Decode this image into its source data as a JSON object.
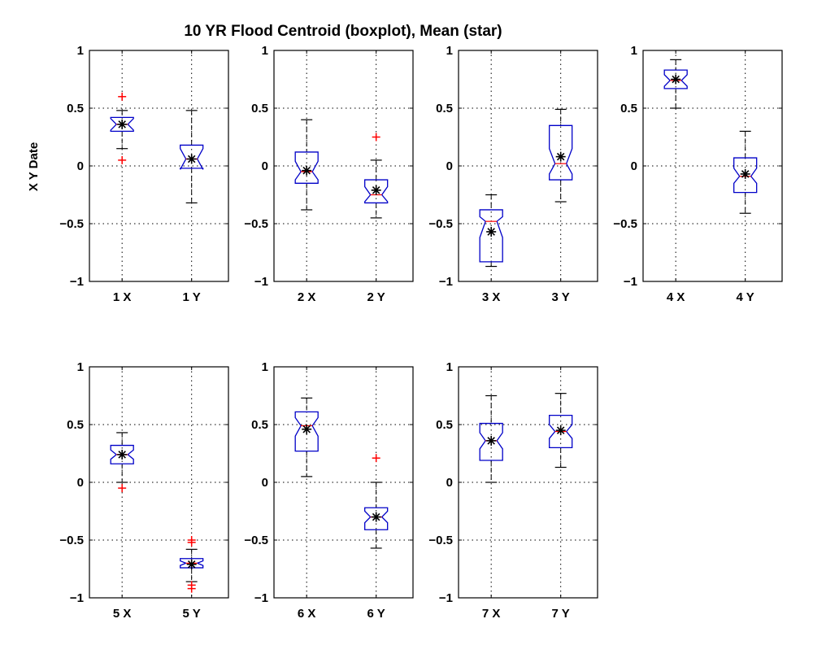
{
  "chart_data": {
    "type": "boxplot",
    "title": "10 YR Flood Centroid (boxplot), Mean (star)",
    "ylabel": "X Y Date",
    "ylim": [
      -1,
      1
    ],
    "yticks": [
      1,
      0.5,
      0,
      -0.5,
      -1
    ],
    "ytick_labels": [
      "1",
      "0.5",
      "0",
      "−0.5",
      "−1"
    ],
    "grid": true,
    "colors": {
      "box": "#0000c8",
      "median": "#ff0000",
      "outlier": "#ff0000",
      "whisker": "#000000",
      "mean": "#000000"
    },
    "panels": [
      {
        "boxes": [
          {
            "label": "1 X",
            "min": 0.15,
            "q1": 0.3,
            "median": 0.36,
            "q3": 0.42,
            "max": 0.48,
            "notch_low": 0.31,
            "notch_high": 0.41,
            "mean": 0.36,
            "outliers": [
              0.6,
              0.05
            ]
          },
          {
            "label": "1 Y",
            "min": -0.32,
            "q1": -0.02,
            "median": 0.06,
            "q3": 0.18,
            "max": 0.48,
            "notch_low": -0.03,
            "notch_high": 0.15,
            "mean": 0.06,
            "outliers": []
          }
        ]
      },
      {
        "boxes": [
          {
            "label": "2 X",
            "min": -0.38,
            "q1": -0.15,
            "median": -0.05,
            "q3": 0.12,
            "max": 0.4,
            "notch_low": -0.12,
            "notch_high": 0.04,
            "mean": -0.04,
            "outliers": []
          },
          {
            "label": "2 Y",
            "min": -0.45,
            "q1": -0.32,
            "median": -0.25,
            "q3": -0.12,
            "max": 0.05,
            "notch_low": -0.31,
            "notch_high": -0.18,
            "mean": -0.21,
            "outliers": [
              0.25
            ]
          }
        ]
      },
      {
        "boxes": [
          {
            "label": "3 X",
            "min": -0.87,
            "q1": -0.83,
            "median": -0.48,
            "q3": -0.38,
            "max": -0.25,
            "notch_low": -0.62,
            "notch_high": -0.44,
            "mean": -0.57,
            "outliers": []
          },
          {
            "label": "3 Y",
            "min": -0.31,
            "q1": -0.12,
            "median": 0.02,
            "q3": 0.35,
            "max": 0.49,
            "notch_low": -0.07,
            "notch_high": 0.15,
            "mean": 0.08,
            "outliers": []
          }
        ]
      },
      {
        "boxes": [
          {
            "label": "4 X",
            "min": 0.5,
            "q1": 0.67,
            "median": 0.74,
            "q3": 0.83,
            "max": 0.92,
            "notch_low": 0.69,
            "notch_high": 0.79,
            "mean": 0.75,
            "outliers": []
          },
          {
            "label": "4 Y",
            "min": -0.41,
            "q1": -0.23,
            "median": -0.09,
            "q3": 0.07,
            "max": 0.3,
            "notch_low": -0.15,
            "notch_high": -0.02,
            "mean": -0.07,
            "outliers": []
          }
        ]
      },
      {
        "boxes": [
          {
            "label": "5 X",
            "min": 0.0,
            "q1": 0.16,
            "median": 0.24,
            "q3": 0.32,
            "max": 0.43,
            "notch_low": 0.2,
            "notch_high": 0.28,
            "mean": 0.24,
            "outliers": [
              -0.05
            ]
          },
          {
            "label": "5 Y",
            "min": -0.86,
            "q1": -0.74,
            "median": -0.7,
            "q3": -0.66,
            "max": -0.58,
            "notch_low": -0.72,
            "notch_high": -0.68,
            "mean": -0.71,
            "outliers": [
              -0.5,
              -0.52,
              -0.89,
              -0.92
            ]
          }
        ]
      },
      {
        "boxes": [
          {
            "label": "6 X",
            "min": 0.05,
            "q1": 0.27,
            "median": 0.49,
            "q3": 0.61,
            "max": 0.73,
            "notch_low": 0.4,
            "notch_high": 0.56,
            "mean": 0.46,
            "outliers": []
          },
          {
            "label": "6 Y",
            "min": -0.57,
            "q1": -0.41,
            "median": -0.3,
            "q3": -0.22,
            "max": 0.0,
            "notch_low": -0.35,
            "notch_high": -0.25,
            "mean": -0.3,
            "outliers": [
              0.21
            ]
          }
        ]
      },
      {
        "boxes": [
          {
            "label": "7 X",
            "min": 0.0,
            "q1": 0.19,
            "median": 0.36,
            "q3": 0.51,
            "max": 0.75,
            "notch_low": 0.29,
            "notch_high": 0.43,
            "mean": 0.36,
            "outliers": []
          },
          {
            "label": "7 Y",
            "min": 0.13,
            "q1": 0.3,
            "median": 0.44,
            "q3": 0.58,
            "max": 0.77,
            "notch_low": 0.38,
            "notch_high": 0.5,
            "mean": 0.45,
            "outliers": []
          }
        ]
      }
    ]
  }
}
